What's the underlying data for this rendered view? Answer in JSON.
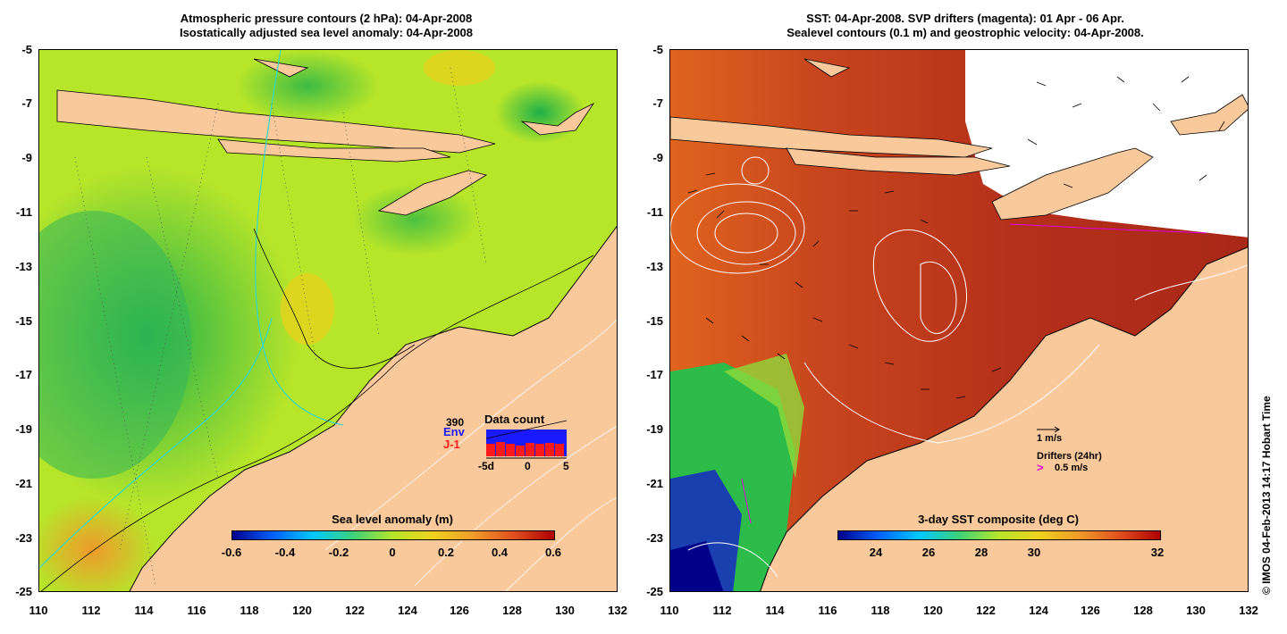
{
  "left_panel": {
    "title_line1": "Atmospheric pressure contours (2 hPa): 04-Apr-2008",
    "title_line2": "Isostatically adjusted sea level anomaly: 04-Apr-2008",
    "colorbar_title": "Sea level anomaly (m)",
    "colorbar_ticks": [
      "-0.6",
      "-0.4",
      "-0.2",
      "0",
      "0.2",
      "0.4",
      "0.6"
    ],
    "inset": {
      "title": "Data count",
      "count": "390",
      "env_label": "Env",
      "j1_label": "J-1",
      "x_ticks": [
        "-5d",
        "0",
        "5"
      ],
      "env_color": "#1a1aff",
      "j1_color": "#ff1a1a"
    }
  },
  "right_panel": {
    "title_line1": "SST: 04-Apr-2008. SVP drifters (magenta): 01 Apr - 06 Apr.",
    "title_line2": "Sealevel contours (0.1 m) and geostrophic velocity: 04-Apr-2008.",
    "colorbar_title": "3-day SST composite (deg C)",
    "colorbar_ticks": [
      "24",
      "26",
      "28",
      "30",
      "32"
    ],
    "velocity_scale": "1 m/s",
    "drifters_label": "Drifters (24hr)",
    "drifter_scale": "0.5 m/s",
    "drifter_color": "#e000e0"
  },
  "axes": {
    "lat_ticks": [
      "-5",
      "-7",
      "-9",
      "-11",
      "-13",
      "-15",
      "-17",
      "-19",
      "-21",
      "-23",
      "-25"
    ],
    "lon_ticks": [
      "110",
      "112",
      "114",
      "116",
      "118",
      "120",
      "122",
      "124",
      "126",
      "128",
      "130",
      "132"
    ]
  },
  "colors": {
    "land": "#f9c89b",
    "sla_low": "#00008b",
    "sla_high": "#b00000",
    "sst_low": "#00008b",
    "sst_high": "#b00000"
  },
  "credit": "© IMOS 04-Feb-2013 14:17 Hobart Time"
}
